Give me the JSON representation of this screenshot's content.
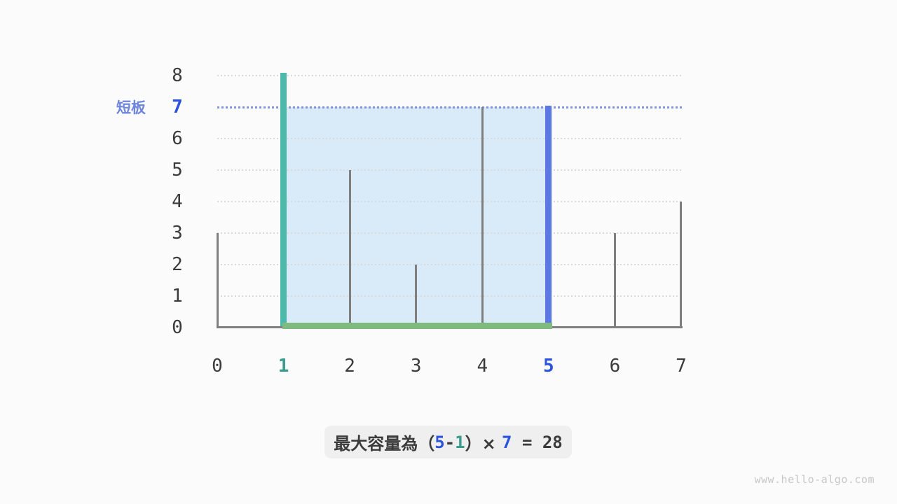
{
  "watermark": "www.hello-algo.com",
  "colors": {
    "page_bg": "#fbfbfb",
    "text_dark": "#3b3b3b",
    "bar_gray": "#7f7f7f",
    "grid": "#dadada",
    "teal_bar": "#4db9ab",
    "teal_text": "#3a9a8c",
    "blue_bar": "#5d78e4",
    "blue_text": "#2b53dc",
    "indigo_label": "#6e85dc",
    "dotted_level_line": "#8394de",
    "water_fill": "#d9eaf8",
    "green_line": "#7fba7f",
    "caption_bg": "#efeff0",
    "watermark_gray": "#c7c7c7"
  },
  "chart_data": {
    "type": "bar",
    "title": "",
    "xlabel": "",
    "ylabel": "",
    "x_ticks": [
      "0",
      "1",
      "2",
      "3",
      "4",
      "5",
      "6",
      "7"
    ],
    "y_ticks": [
      "0",
      "1",
      "2",
      "3",
      "4",
      "5",
      "6",
      "7",
      "8"
    ],
    "heights": [
      3,
      8,
      5,
      2,
      7,
      7,
      3,
      4
    ],
    "ylim": [
      0,
      8
    ],
    "grid": true,
    "left_pointer": {
      "index": 1,
      "height": 8
    },
    "right_pointer": {
      "index": 5,
      "height": 7
    },
    "short_board": {
      "label": "短板",
      "height": 7
    },
    "water": {
      "from": 1,
      "to": 5,
      "depth": 7,
      "capacity": 28
    }
  },
  "caption": {
    "full_text": "最大容量為（5-1）× 7 = 28",
    "parts": [
      {
        "text": "最大容量為（",
        "role": "dark",
        "mono": false,
        "bold": true
      },
      {
        "text": "5",
        "role": "blue",
        "mono": true,
        "bold": true
      },
      {
        "text": "-",
        "role": "dark",
        "mono": true,
        "bold": true
      },
      {
        "text": "1",
        "role": "teal",
        "mono": true,
        "bold": true
      },
      {
        "text": "）× ",
        "role": "dark",
        "mono": false,
        "bold": true
      },
      {
        "text": "7",
        "role": "blue",
        "mono": true,
        "bold": true
      },
      {
        "text": " = ",
        "role": "dark",
        "mono": true,
        "bold": true
      },
      {
        "text": "28",
        "role": "dark",
        "mono": true,
        "bold": true
      }
    ]
  }
}
